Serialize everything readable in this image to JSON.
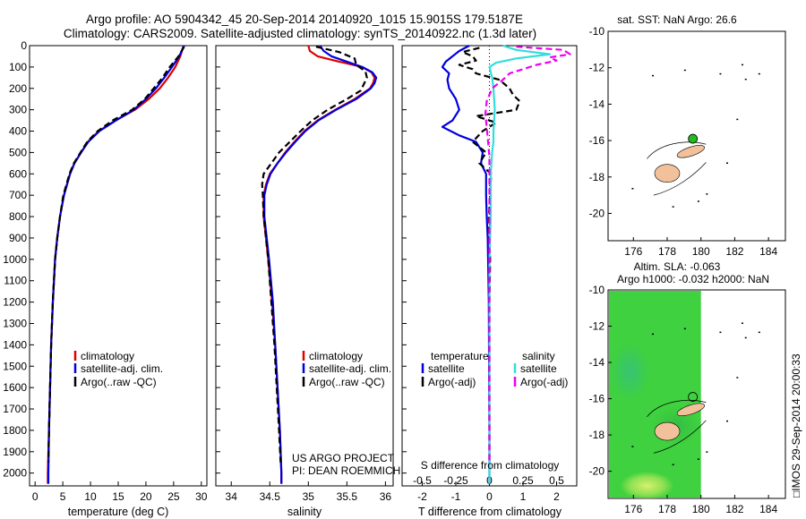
{
  "header": {
    "title_line1": "Argo profile: AO 5904342_45 20-Sep-2014 20140920_1015 15.9015S 179.5187E",
    "title_line2": "Climatology: CARS2009. Satellite-adjusted climatology: synTS_20140922.nc (1.3d later)"
  },
  "colors": {
    "climatology": "#dd0000",
    "satellite": "#0000dd",
    "argo": "#000000",
    "sal_satellite": "#33dddd",
    "sal_argo": "#ee00ee",
    "island": "#f2c09a",
    "sla_field": "#3fd13f",
    "float_marker": "#22bb22"
  },
  "chart_data": [
    {
      "type": "line",
      "id": "temperature_profile",
      "xlabel": "temperature (deg C)",
      "ylabel": "",
      "xlim": [
        -1,
        31
      ],
      "ylim": [
        2060,
        0
      ],
      "xticks": [
        0,
        5,
        10,
        15,
        20,
        25,
        30
      ],
      "yticks": [
        0,
        100,
        200,
        300,
        400,
        500,
        600,
        700,
        800,
        900,
        1000,
        1100,
        1200,
        1300,
        1400,
        1500,
        1600,
        1700,
        1800,
        1900,
        2000
      ],
      "legend": {
        "placement": "bottom-center",
        "entries": [
          "climatology",
          "satellite-adj. clim.",
          "Argo(..raw -QC)"
        ]
      },
      "series": [
        {
          "name": "climatology",
          "color": "#dd0000",
          "depth": [
            0,
            50,
            100,
            150,
            200,
            250,
            300,
            350,
            400,
            450,
            500,
            550,
            600,
            700,
            800,
            900,
            1000,
            1200,
            1400,
            1600,
            1800,
            2000,
            2050
          ],
          "values": [
            26.8,
            26.2,
            25.3,
            24.0,
            22.5,
            20.5,
            18.0,
            14.5,
            11.5,
            9.5,
            8.3,
            7.1,
            6.3,
            5.2,
            4.5,
            4.0,
            3.6,
            3.2,
            2.9,
            2.7,
            2.5,
            2.3,
            2.3
          ]
        },
        {
          "name": "satellite-adj. clim.",
          "color": "#0000dd",
          "depth": [
            0,
            50,
            100,
            150,
            200,
            250,
            300,
            350,
            400,
            450,
            500,
            550,
            600,
            700,
            800,
            900,
            1000,
            1200,
            1400,
            1600,
            1800,
            2000,
            2050
          ],
          "values": [
            26.9,
            26.0,
            24.7,
            23.3,
            21.8,
            20.0,
            17.8,
            14.6,
            11.6,
            9.6,
            8.3,
            7.1,
            6.3,
            5.2,
            4.5,
            4.0,
            3.6,
            3.2,
            2.9,
            2.7,
            2.5,
            2.4,
            2.4
          ]
        },
        {
          "name": "Argo(..raw -QC)",
          "color": "#000000",
          "dashed": true,
          "depth": [
            5,
            50,
            100,
            150,
            200,
            250,
            300,
            350,
            400,
            450,
            500,
            550,
            600,
            700,
            800,
            900,
            1000,
            1200,
            1400,
            1600,
            1800,
            1950
          ],
          "values": [
            26.9,
            25.9,
            24.3,
            23.0,
            21.4,
            19.8,
            17.5,
            14.0,
            11.3,
            9.4,
            8.2,
            7.0,
            6.2,
            5.1,
            4.5,
            4.0,
            3.6,
            3.2,
            2.9,
            2.7,
            2.5,
            2.4
          ]
        }
      ],
      "annotations": []
    },
    {
      "type": "line",
      "id": "salinity_profile",
      "xlabel": "salinity",
      "ylabel": "",
      "xlim": [
        33.8,
        36.1
      ],
      "ylim": [
        2060,
        0
      ],
      "xticks": [
        34,
        34.5,
        35,
        35.5,
        36
      ],
      "legend": {
        "placement": "bottom-center",
        "entries": [
          "climatology",
          "satellite-adj. clim.",
          "Argo(..raw -QC)"
        ]
      },
      "series": [
        {
          "name": "climatology",
          "color": "#dd0000",
          "depth": [
            0,
            25,
            50,
            75,
            100,
            125,
            150,
            175,
            200,
            250,
            300,
            350,
            400,
            450,
            500,
            550,
            600,
            650,
            700,
            800,
            900,
            1000,
            1200,
            1400,
            1600,
            1800,
            2000,
            2050
          ],
          "values": [
            35.0,
            35.02,
            35.12,
            35.4,
            35.7,
            35.82,
            35.86,
            35.84,
            35.8,
            35.6,
            35.35,
            35.12,
            34.95,
            34.82,
            34.7,
            34.6,
            34.5,
            34.45,
            34.42,
            34.42,
            34.45,
            34.48,
            34.53,
            34.57,
            34.6,
            34.63,
            34.65,
            34.65
          ]
        },
        {
          "name": "satellite-adj. clim.",
          "color": "#0000dd",
          "depth": [
            0,
            25,
            50,
            75,
            100,
            125,
            150,
            175,
            200,
            250,
            300,
            350,
            400,
            450,
            500,
            550,
            600,
            650,
            700,
            800,
            900,
            1000,
            1200,
            1400,
            1600,
            1800,
            2000,
            2050
          ],
          "values": [
            35.15,
            35.2,
            35.3,
            35.5,
            35.7,
            35.83,
            35.88,
            35.86,
            35.81,
            35.62,
            35.36,
            35.13,
            34.96,
            34.83,
            34.71,
            34.6,
            34.51,
            34.46,
            34.43,
            34.43,
            34.46,
            34.49,
            34.54,
            34.57,
            34.6,
            34.63,
            34.65,
            34.65
          ]
        },
        {
          "name": "Argo(..raw -QC)",
          "color": "#000000",
          "dashed": true,
          "depth": [
            5,
            30,
            60,
            90,
            120,
            150,
            180,
            210,
            250,
            300,
            350,
            400,
            450,
            500,
            550,
            600,
            650,
            700,
            800,
            900,
            1000,
            1200,
            1400,
            1600,
            1800,
            1950
          ],
          "values": [
            35.1,
            35.4,
            35.6,
            35.62,
            35.74,
            35.76,
            35.72,
            35.68,
            35.5,
            35.25,
            35.05,
            34.9,
            34.76,
            34.62,
            34.52,
            34.42,
            34.4,
            34.41,
            34.42,
            34.45,
            34.48,
            34.52,
            34.56,
            34.59,
            34.62,
            34.64
          ]
        }
      ],
      "annotations": [
        "US ARGO PROJECT",
        "PI: DEAN ROEMMICH"
      ]
    },
    {
      "type": "line",
      "id": "difference_profile",
      "xlabel": "T difference from climatology",
      "xlabel_top": "S difference from climatology",
      "xlim": [
        -2.6,
        2.6
      ],
      "ylim": [
        2060,
        0
      ],
      "xticks": [
        -2,
        -1,
        0,
        1,
        2
      ],
      "xticks_salinity": [
        -0.5,
        -0.25,
        0,
        0.25,
        0.5
      ],
      "legend": {
        "placement": "bottom",
        "temperature_title": "temperature",
        "salinity_title": "salinity",
        "entries": [
          "satellite",
          "Argo(-adj)",
          "satellite",
          "Argo(-adj)"
        ]
      },
      "series": [
        {
          "name": "satellite",
          "group": "temperature",
          "color": "#0000dd",
          "depth": [
            0,
            25,
            50,
            75,
            100,
            130,
            160,
            200,
            250,
            300,
            350,
            380,
            420,
            450,
            500,
            550,
            600,
            700,
            800,
            900,
            1000,
            1200,
            1500,
            1800,
            2050
          ],
          "values": [
            -0.6,
            -0.9,
            -1.1,
            -1.3,
            -1.4,
            -1.2,
            -1.25,
            -1.2,
            -1.0,
            -0.9,
            -1.1,
            -1.4,
            -0.9,
            -0.4,
            -0.2,
            -0.25,
            -0.1,
            -0.1,
            -0.08,
            -0.05,
            -0.04,
            -0.02,
            -0.01,
            0.0,
            0.0
          ]
        },
        {
          "name": "Argo(-adj)",
          "group": "temperature",
          "color": "#000000",
          "dashed": true,
          "depth": [
            10,
            30,
            50,
            70,
            90,
            110,
            130,
            160,
            200,
            230,
            260,
            300,
            330,
            360,
            400,
            450,
            500,
            550,
            600,
            700,
            800,
            900,
            1000,
            1200,
            1500,
            1800,
            1950
          ],
          "values": [
            -0.3,
            -0.8,
            -0.5,
            -0.4,
            -0.9,
            -0.5,
            -0.4,
            0.3,
            0.6,
            0.7,
            0.9,
            0.8,
            -0.4,
            0.2,
            -0.2,
            -0.5,
            -0.1,
            -0.3,
            0.05,
            0.02,
            -0.02,
            0.0,
            0.02,
            0.0,
            0.0,
            0.0,
            0.0
          ]
        },
        {
          "name": "satellite",
          "group": "salinity",
          "color": "#33dddd",
          "depth": [
            0,
            20,
            40,
            60,
            80,
            100,
            150,
            200,
            300,
            400,
            450,
            500,
            600,
            800,
            1000,
            1500,
            2050
          ],
          "values": [
            0.1,
            0.2,
            0.45,
            0.2,
            0.05,
            0.0,
            0.02,
            0.03,
            0.04,
            0.03,
            0.03,
            0.02,
            0.01,
            0.01,
            0.0,
            0.0,
            0.0
          ]
        },
        {
          "name": "Argo(-adj)",
          "group": "salinity",
          "color": "#ee00ee",
          "dashed": true,
          "depth": [
            5,
            20,
            40,
            55,
            70,
            90,
            110,
            130,
            160,
            200,
            260,
            320,
            380,
            450,
            520,
            600,
            800,
            1000,
            1500,
            1950
          ],
          "values": [
            0.2,
            0.55,
            0.6,
            0.45,
            0.5,
            0.35,
            0.25,
            0.15,
            0.1,
            0.02,
            -0.02,
            -0.03,
            -0.02,
            -0.01,
            0.0,
            0.0,
            0.0,
            0.0,
            0.0,
            0.0
          ]
        }
      ]
    },
    {
      "type": "scatter",
      "id": "sst_map",
      "title": "sat. SST: NaN Argo: 26.6",
      "xlim": [
        174.5,
        185
      ],
      "ylim": [
        -21.5,
        -10
      ],
      "xticks": [
        176,
        178,
        180,
        182,
        184
      ],
      "yticks": [
        -10,
        -12,
        -14,
        -16,
        -18,
        -20
      ],
      "float_position": {
        "lon": 179.52,
        "lat": -15.9
      }
    },
    {
      "type": "heatmap",
      "id": "sla_map",
      "title_line1": "Altim. SLA: -0.063",
      "title_line2": "Argo h1000: -0.032 h2000: NaN",
      "xlim": [
        174.5,
        185
      ],
      "ylim": [
        -21.5,
        -10
      ],
      "xticks": [
        176,
        178,
        180,
        182,
        184
      ],
      "yticks": [
        -10,
        -12,
        -14,
        -16,
        -18,
        -20
      ],
      "field_extent_lon": [
        174.5,
        180
      ],
      "float_position": {
        "lon": 179.52,
        "lat": -15.9
      },
      "side_label": "□IMOS 29-Sep-2014 20:00:33"
    }
  ]
}
